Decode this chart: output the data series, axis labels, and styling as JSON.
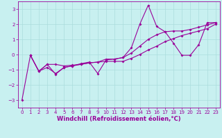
{
  "xlabel": "Windchill (Refroidissement éolien,°C)",
  "bg_color": "#c8f0f0",
  "line_color": "#990099",
  "grid_color": "#aadddd",
  "xlim": [
    -0.5,
    23.5
  ],
  "ylim": [
    -3.5,
    3.5
  ],
  "yticks": [
    -3,
    -2,
    -1,
    0,
    1,
    2,
    3
  ],
  "xticks": [
    0,
    1,
    2,
    3,
    4,
    5,
    6,
    7,
    8,
    9,
    10,
    11,
    12,
    13,
    14,
    15,
    16,
    17,
    18,
    19,
    20,
    21,
    22,
    23
  ],
  "line1_x": [
    0,
    1,
    2,
    3,
    4,
    5,
    6,
    7,
    8,
    9,
    10,
    11,
    12,
    13,
    14,
    15,
    16,
    17,
    18,
    19,
    20,
    21,
    22,
    23
  ],
  "line1_y": [
    -3.0,
    -0.05,
    -1.1,
    -0.65,
    -1.3,
    -0.85,
    -0.75,
    -0.6,
    -0.5,
    -1.25,
    -0.35,
    -0.3,
    -0.2,
    0.45,
    2.0,
    3.25,
    1.85,
    1.5,
    0.75,
    -0.05,
    -0.05,
    0.65,
    2.1,
    2.1
  ],
  "line2_x": [
    1,
    2,
    3,
    4,
    5,
    6,
    7,
    8,
    9,
    10,
    11,
    12,
    13,
    14,
    15,
    16,
    17,
    18,
    19,
    20,
    21,
    22,
    23
  ],
  "line2_y": [
    -0.05,
    -1.1,
    -0.65,
    -0.65,
    -0.75,
    -0.7,
    -0.65,
    -0.55,
    -0.5,
    -0.3,
    -0.3,
    -0.2,
    0.1,
    0.55,
    1.0,
    1.3,
    1.5,
    1.55,
    1.55,
    1.65,
    1.8,
    1.95,
    2.1
  ],
  "line3_x": [
    1,
    2,
    3,
    4,
    5,
    6,
    7,
    8,
    9,
    10,
    11,
    12,
    13,
    14,
    15,
    16,
    17,
    18,
    19,
    20,
    21,
    22,
    23
  ],
  "line3_y": [
    -0.05,
    -1.1,
    -0.85,
    -1.25,
    -0.85,
    -0.75,
    -0.65,
    -0.55,
    -0.5,
    -0.45,
    -0.45,
    -0.45,
    -0.25,
    0.0,
    0.3,
    0.55,
    0.85,
    1.05,
    1.25,
    1.4,
    1.55,
    1.7,
    2.0
  ],
  "markersize": 2.0,
  "linewidth": 0.8,
  "tick_fontsize": 5.0,
  "label_fontsize": 6.0
}
